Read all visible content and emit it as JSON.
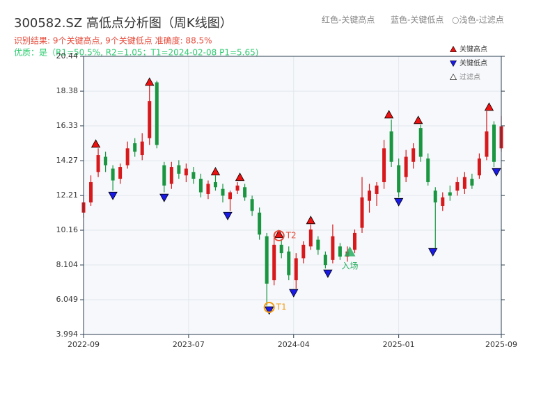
{
  "chart_data": {
    "type": "candlestick",
    "title": "300582.SZ 高低点分析图（周K线图）",
    "subtitle": "识别结果: 9个关键高点, 9个关键低点  准确度: 88.5%",
    "quality_note": "优质：是（R1=50.5%, R2=1.05；T1=2024-02-08 P1=5.65)",
    "header_notes": [
      "红色-关键高点",
      "蓝色-关键低点",
      "○浅色-过滤点"
    ],
    "up_color": "#d7191c",
    "down_color": "#1a9641",
    "grid": true,
    "xlim": [
      0,
      171
    ],
    "xticks": [
      {
        "value": 0,
        "label": "2022-09"
      },
      {
        "value": 43,
        "label": "2023-07"
      },
      {
        "value": 86,
        "label": "2024-04"
      },
      {
        "value": 129,
        "label": "2025-01"
      },
      {
        "value": 171,
        "label": "2025-09"
      }
    ],
    "ylim": [
      3.994,
      20.44
    ],
    "yticks": [
      3.994,
      6.049,
      8.104,
      10.16,
      12.21,
      14.27,
      16.33,
      18.38,
      20.44
    ],
    "x": [
      0,
      3,
      6,
      9,
      12,
      15,
      18,
      21,
      24,
      27,
      30,
      33,
      36,
      39,
      42,
      45,
      48,
      51,
      54,
      57,
      60,
      63,
      66,
      69,
      72,
      75,
      78,
      81,
      84,
      87,
      90,
      93,
      96,
      99,
      102,
      105,
      108,
      111,
      114,
      117,
      120,
      123,
      126,
      129,
      132,
      135,
      138,
      141,
      144,
      147,
      150,
      153,
      156,
      159,
      162,
      165,
      168,
      171
    ],
    "open": [
      11.2,
      11.8,
      13.6,
      14.5,
      13.8,
      13.2,
      14.0,
      15.3,
      14.6,
      15.6,
      18.9,
      14.0,
      12.9,
      14.0,
      13.4,
      13.6,
      13.2,
      12.3,
      13.0,
      12.6,
      12.0,
      12.5,
      12.7,
      12.0,
      11.2,
      9.8,
      7.2,
      9.3,
      8.9,
      7.2,
      8.5,
      9.2,
      9.6,
      8.7,
      8.4,
      9.2,
      8.6,
      9.0,
      10.3,
      11.9,
      12.3,
      13.0,
      16.0,
      14.0,
      13.3,
      14.2,
      16.2,
      14.4,
      12.5,
      11.6,
      12.4,
      12.5,
      12.6,
      13.2,
      13.4,
      14.5,
      16.4,
      15.0
    ],
    "high": [
      12.2,
      13.4,
      15.0,
      14.8,
      14.0,
      14.1,
      15.4,
      15.6,
      15.9,
      18.7,
      19.0,
      14.2,
      14.2,
      14.3,
      14.1,
      13.9,
      13.5,
      13.1,
      13.4,
      12.9,
      12.5,
      13.0,
      12.9,
      12.2,
      11.5,
      10.0,
      9.7,
      9.6,
      9.2,
      8.8,
      9.5,
      10.5,
      9.8,
      8.9,
      10.5,
      9.4,
      9.2,
      10.2,
      13.3,
      12.9,
      13.0,
      15.5,
      16.7,
      14.4,
      14.9,
      15.3,
      16.4,
      14.7,
      12.7,
      12.4,
      12.8,
      13.3,
      13.6,
      13.5,
      14.7,
      17.2,
      16.6,
      16.9
    ],
    "low": [
      10.9,
      11.6,
      13.3,
      13.6,
      12.5,
      12.9,
      13.8,
      14.5,
      14.3,
      15.2,
      15.0,
      12.4,
      12.6,
      13.2,
      13.0,
      12.9,
      12.1,
      12.0,
      12.5,
      11.8,
      11.3,
      12.3,
      11.9,
      11.0,
      9.6,
      5.7,
      6.9,
      8.5,
      7.2,
      6.7,
      8.2,
      9.0,
      8.7,
      7.9,
      8.2,
      8.4,
      8.3,
      8.8,
      10.0,
      11.2,
      11.6,
      12.6,
      13.9,
      12.1,
      13.0,
      13.8,
      14.2,
      12.8,
      9.1,
      11.3,
      11.9,
      12.2,
      12.3,
      12.6,
      13.2,
      14.3,
      13.9,
      14.8
    ],
    "close": [
      11.8,
      13.0,
      14.6,
      14.0,
      13.1,
      13.9,
      15.0,
      14.8,
      15.4,
      17.8,
      15.2,
      12.8,
      13.9,
      13.5,
      13.8,
      13.2,
      12.4,
      12.9,
      12.7,
      12.2,
      12.4,
      12.8,
      12.1,
      11.3,
      9.9,
      7.0,
      9.3,
      8.8,
      7.5,
      8.5,
      9.3,
      10.2,
      9.0,
      8.1,
      9.8,
      8.6,
      8.9,
      10.0,
      12.1,
      12.5,
      12.8,
      15.0,
      14.2,
      12.4,
      14.5,
      15.0,
      14.5,
      13.0,
      11.8,
      12.1,
      12.2,
      13.0,
      13.3,
      12.8,
      14.4,
      16.0,
      14.2,
      16.3
    ],
    "series": [
      {
        "name": "关键高点",
        "color": "#ee1111",
        "marker": "up",
        "x": [
          5,
          27,
          54,
          64,
          80,
          93,
          125,
          137,
          166
        ],
        "values": [
          15.01,
          18.67,
          13.37,
          13.04,
          9.67,
          10.49,
          16.74,
          16.41,
          17.19
        ]
      },
      {
        "name": "关键低点",
        "color": "#1a1ae6",
        "marker": "down",
        "x": [
          12,
          33,
          59,
          76,
          86,
          100,
          129,
          143,
          169
        ],
        "values": [
          12.46,
          12.34,
          11.27,
          5.68,
          6.71,
          7.86,
          12.09,
          9.13,
          13.86
        ]
      }
    ],
    "filtered_label": "过滤点",
    "annotations": [
      {
        "label": "T1",
        "x": 76,
        "y": 5.68,
        "color": "#f39c12"
      },
      {
        "label": "T2",
        "x": 80,
        "y": 9.67,
        "color": "#e74c3c"
      }
    ],
    "entry": {
      "label": "入场",
      "x": 109,
      "y": 8.88,
      "color": "#27ae60"
    }
  }
}
